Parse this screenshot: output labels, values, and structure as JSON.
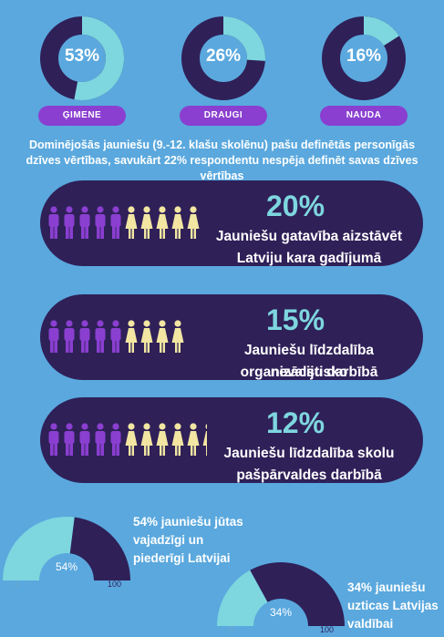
{
  "colors": {
    "background": "#5aa8de",
    "dark": "#2f2058",
    "light": "#7ed6df",
    "pill": "#8a3fd0",
    "purple_person": "#8a3fd0",
    "yellow_person": "#f2e6a2"
  },
  "chart_data": [
    {
      "type": "pie",
      "subtype": "donut",
      "categories": [
        "ĢIMENE",
        "DRAUGI",
        "NAUDA"
      ],
      "values": [
        53,
        26,
        16
      ],
      "value_labels": [
        "53%",
        "26%",
        "16%"
      ],
      "description": "Dominējošās jauniešu (9.-12. klašu skolēnu) pašu definētās personīgās dzīves vērtības, savukārt 22% respondentu nespēja definēt savas dzīves vērtības"
    },
    {
      "type": "bar",
      "subtype": "pictogram",
      "items": [
        {
          "value": 20,
          "label": "20%",
          "text_line1": "Jauniešu gatavība aizstāvēt",
          "text_line2": "Latviju kara gadījumā",
          "purple": 5,
          "yellow": 5
        },
        {
          "value": 15,
          "label": "15%",
          "text_line1": "Jauniešu līdzdalība nevalstisko",
          "text_line2": "organizāciju darbībā",
          "purple": 5,
          "yellow": 4
        },
        {
          "value": 12,
          "label": "12%",
          "text_line1": "Jauniešu līdzdalība skolu",
          "text_line2": "pašpārvaldes darbībā",
          "purple": 5,
          "yellow": 6
        }
      ]
    },
    {
      "type": "pie",
      "subtype": "gauge",
      "items": [
        {
          "value": 54,
          "label": "54%",
          "min": "0",
          "max": "100",
          "text_lines": [
            "54% jauniešu jūtas",
            "vajadzīgi un",
            "piederīgi Latvijai"
          ]
        },
        {
          "value": 34,
          "label": "34%",
          "min": "0",
          "max": "100",
          "text_lines": [
            "34% jauniešu",
            "uzticas Latvijas",
            "valdībai"
          ]
        }
      ]
    }
  ]
}
